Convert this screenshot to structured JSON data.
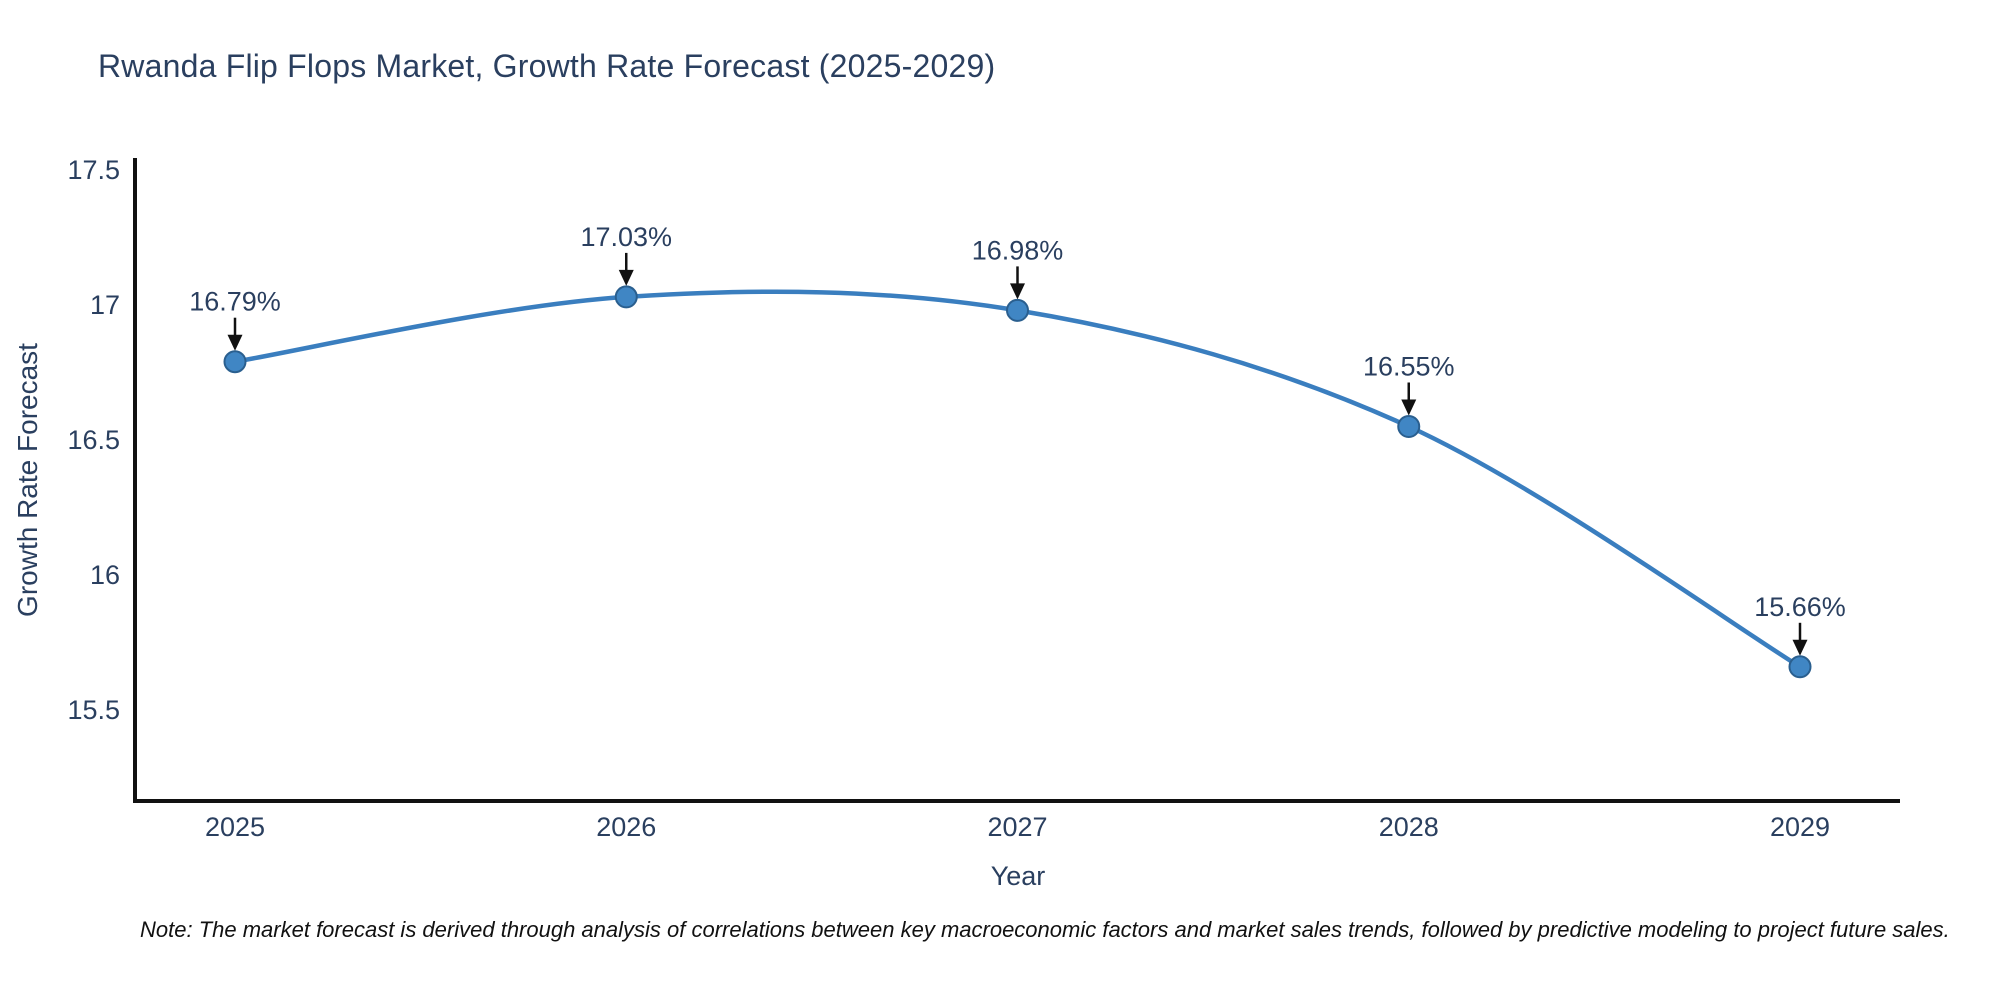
{
  "note": "Note: The market forecast is derived through analysis of correlations between key macroeconomic factors and market sales trends, followed by predictive modeling to project future sales.",
  "chart_data": {
    "type": "line",
    "title": "Rwanda Flip Flops Market, Growth Rate Forecast (2025-2029)",
    "xlabel": "Year",
    "ylabel": "Growth Rate Forecast",
    "x": [
      2025,
      2026,
      2027,
      2028,
      2029
    ],
    "values": [
      16.79,
      17.03,
      16.98,
      16.55,
      15.66
    ],
    "labels": [
      "16.79%",
      "17.03%",
      "16.98%",
      "16.55%",
      "15.66%"
    ],
    "yticks": [
      17.5,
      17,
      16.5,
      16,
      15.5
    ],
    "ytick_labels": [
      "17.5",
      "17",
      "16.5",
      "16",
      "15.5"
    ],
    "ylim": [
      15.16,
      17.54
    ],
    "curve": "spline",
    "grid": false,
    "legend": false,
    "line_color": "#3a7ebf",
    "marker_color": "#4086c4",
    "marker_edge_color": "#2a5f8f",
    "axis_color": "#111111",
    "text_color": "#2a3f5f"
  }
}
